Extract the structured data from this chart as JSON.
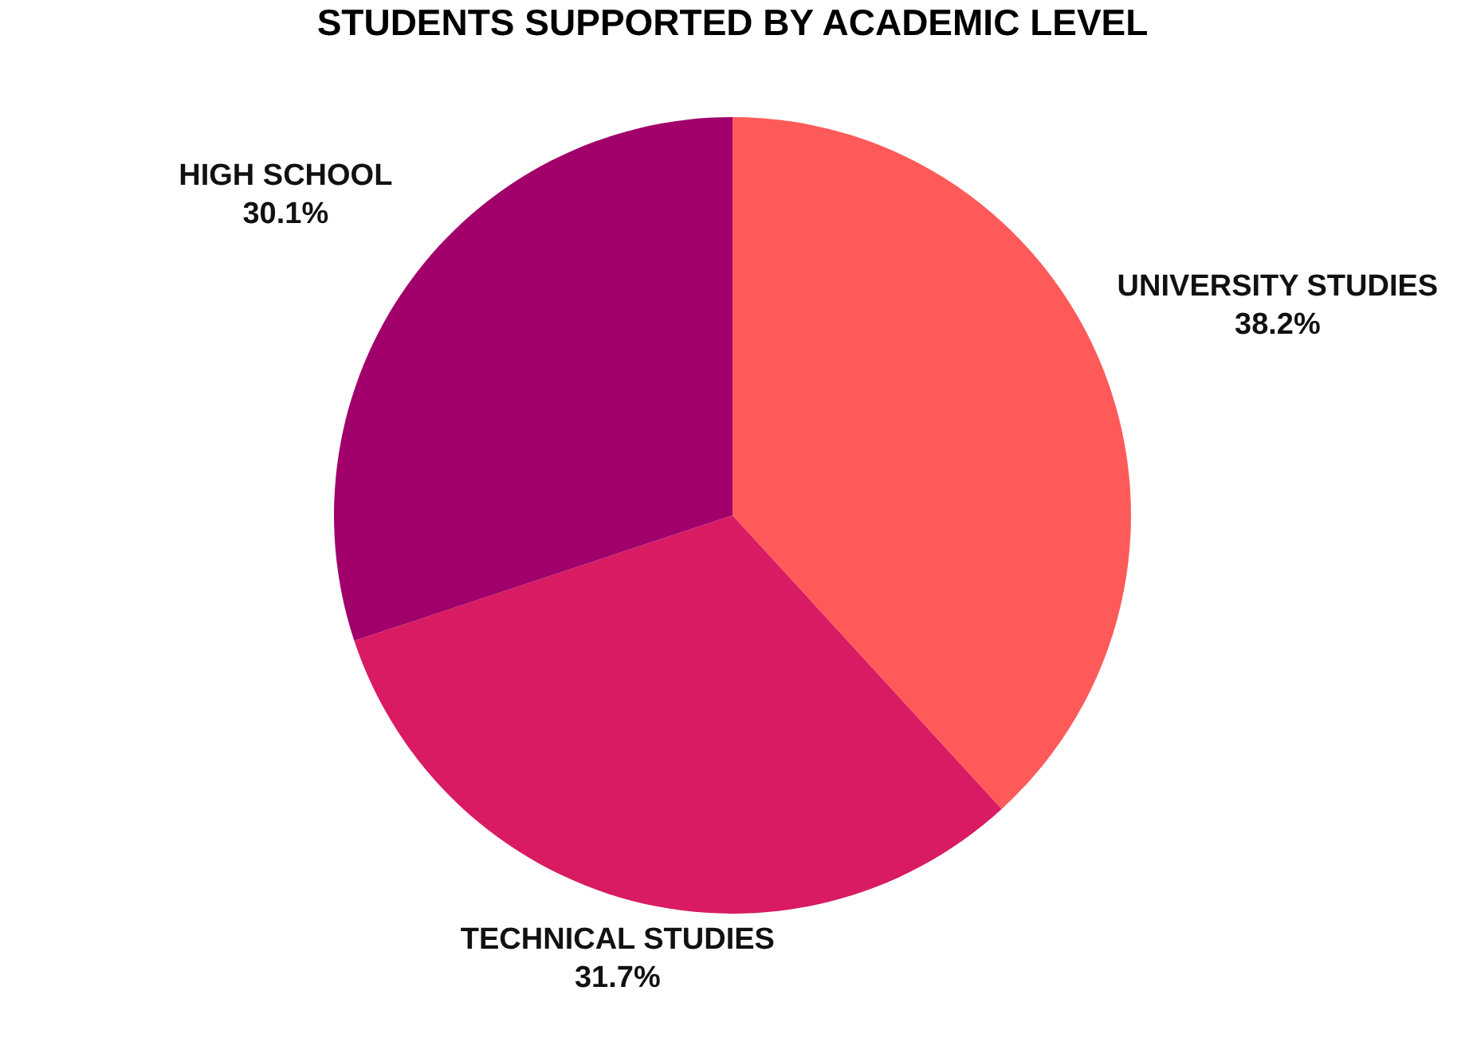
{
  "chart_data": {
    "type": "pie",
    "title": "STUDENTS SUPPORTED BY ACADEMIC LEVEL",
    "categories": [
      "UNIVERSITY STUDIES",
      "TECHNICAL STUDIES",
      "HIGH SCHOOL"
    ],
    "values": [
      38.2,
      31.7,
      30.1
    ],
    "value_labels": [
      "38.2%",
      "31.7%",
      "30.1%"
    ],
    "colors": [
      "#fe5a5a",
      "#d81b62",
      "#a1006b"
    ],
    "legend": false
  }
}
